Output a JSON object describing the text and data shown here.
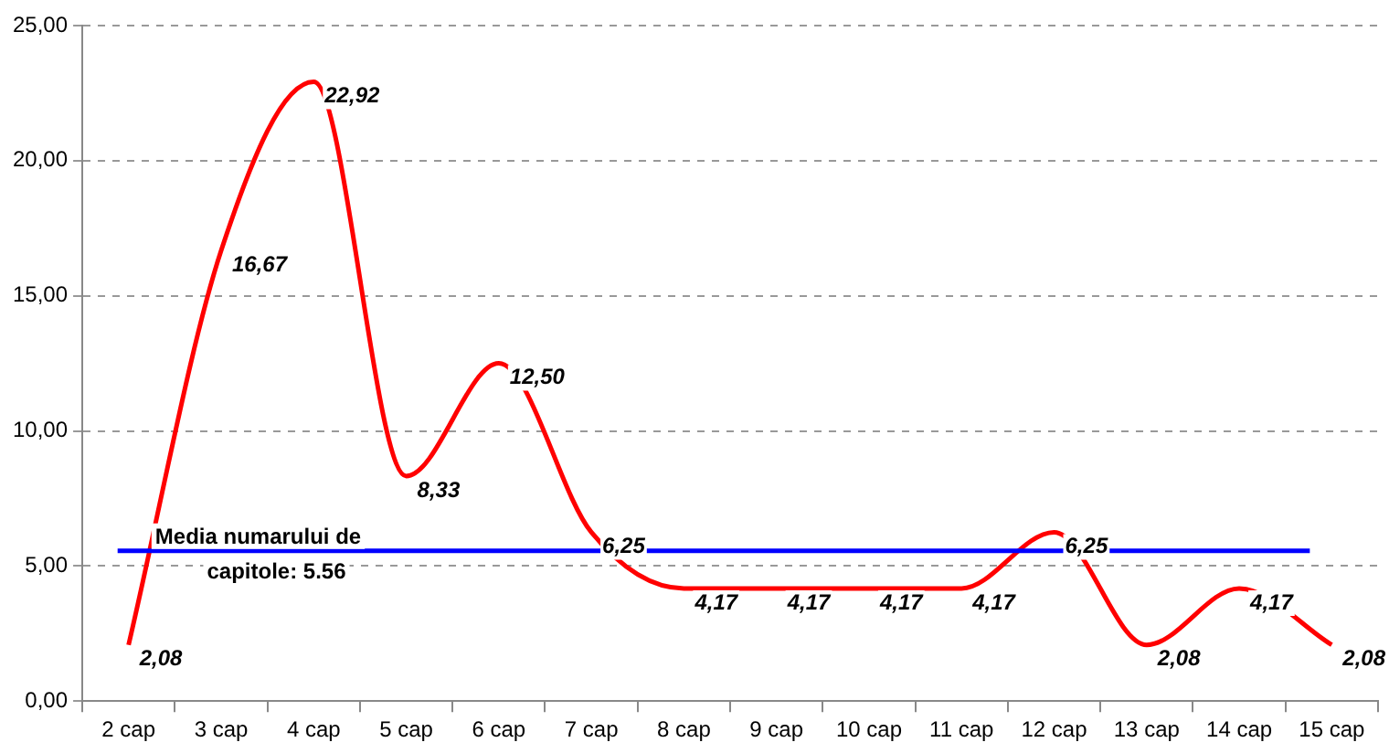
{
  "chart_data": {
    "type": "line",
    "categories": [
      "2 cap",
      "3 cap",
      "4 cap",
      "5 cap",
      "6 cap",
      "7 cap",
      "8 cap",
      "9 cap",
      "10 cap",
      "11 cap",
      "12 cap",
      "13 cap",
      "14 cap",
      "15 cap"
    ],
    "series": [
      {
        "color": "#ff0000",
        "values": [
          2.08,
          16.67,
          22.92,
          8.33,
          12.5,
          6.25,
          4.17,
          4.17,
          4.17,
          4.17,
          6.25,
          2.08,
          4.17,
          2.08
        ],
        "value_labels": [
          "2,08",
          "16,67",
          "22,92",
          "8,33",
          "12,50",
          "6,25",
          "4,17",
          "4,17",
          "4,17",
          "4,17",
          "6,25",
          "2,08",
          "4,17",
          "2,08"
        ]
      }
    ],
    "ylim": [
      0,
      25
    ],
    "yticks": [
      {
        "value": 0,
        "label": "0,00"
      },
      {
        "value": 5,
        "label": "5,00"
      },
      {
        "value": 10,
        "label": "10,00"
      },
      {
        "value": 15,
        "label": "15,00"
      },
      {
        "value": 20,
        "label": "20,00"
      },
      {
        "value": 25,
        "label": "25,00"
      }
    ],
    "ref_lines": [
      {
        "axis": "y",
        "value": 5.56,
        "label": "Media numarului de capitole: 5.56",
        "color": "#0000ff"
      }
    ],
    "grid": "y",
    "legend": false,
    "marker": "none",
    "line_style": "solid"
  }
}
